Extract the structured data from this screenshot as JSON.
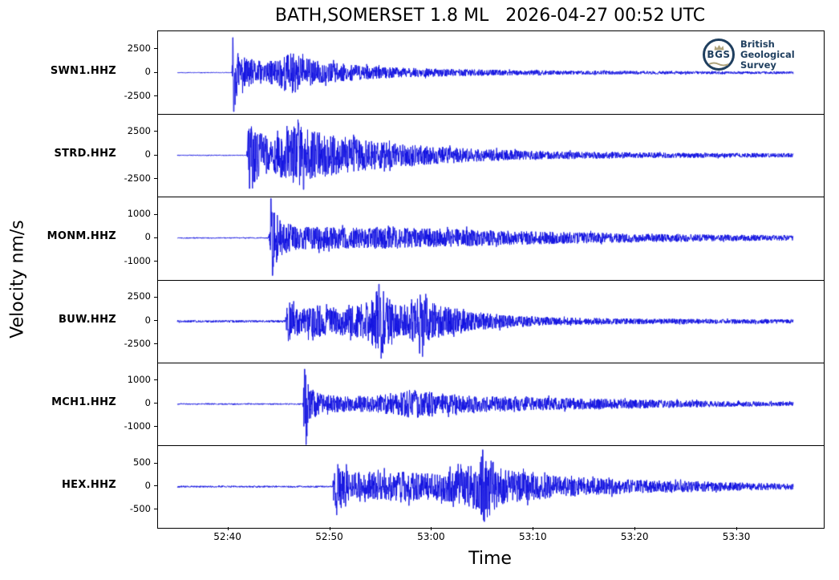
{
  "title": "BATH,SOMERSET 1.8 ML   2026-04-27 00:52 UTC",
  "xlabel": "Time",
  "ylabel": "Velocity nm/s",
  "colors": {
    "trace": "#0d0de0",
    "axis": "#000000",
    "background": "#ffffff",
    "logo_navy": "#1f3f5f",
    "logo_gold": "#b0a47c"
  },
  "logo": {
    "abbr": "BGS",
    "org_lines": [
      "British",
      "Geological",
      "Survey"
    ]
  },
  "chart_data": {
    "type": "line",
    "variant": "seismogram-multitrace",
    "title": "BATH,SOMERSET 1.8 ML   2026-04-27 00:52 UTC",
    "xlabel": "Time",
    "ylabel": "Velocity nm/s",
    "grid": false,
    "legend": "none",
    "x_axis": {
      "tick_labels": [
        "52:40",
        "52:50",
        "53:00",
        "53:10",
        "53:20",
        "53:30"
      ],
      "tick_seconds": [
        3160,
        3170,
        3180,
        3190,
        3200,
        3210
      ],
      "xlim_seconds": [
        3153.1,
        3218.5
      ],
      "data_seconds": [
        3155.0,
        3215.5
      ]
    },
    "traces": [
      {
        "station": "SWN1.HHZ",
        "ytick_labels": [
          "2500",
          "0",
          "-2500"
        ],
        "ytick_values": [
          2500,
          0,
          -2500
        ],
        "ylim": 4360,
        "onset_label": "52:40.4",
        "onset_seconds": 3160.4,
        "seed": 11,
        "envelope": [
          [
            3155,
            40
          ],
          [
            3160.35,
            40
          ],
          [
            3160.45,
            2200
          ],
          [
            3160.55,
            4100
          ],
          [
            3160.9,
            2300
          ],
          [
            3161.5,
            1650
          ],
          [
            3163.8,
            1050
          ],
          [
            3165,
            1700
          ],
          [
            3166.3,
            2250
          ],
          [
            3167.5,
            1550
          ],
          [
            3169.2,
            1150
          ],
          [
            3171.6,
            900
          ],
          [
            3174,
            700
          ],
          [
            3177,
            520
          ],
          [
            3182,
            380
          ],
          [
            3188,
            280
          ],
          [
            3194,
            210
          ],
          [
            3201,
            170
          ],
          [
            3208,
            150
          ],
          [
            3215.5,
            140
          ]
        ],
        "spikes": [
          [
            3160.45,
            3700
          ],
          [
            3160.55,
            -4100
          ]
        ]
      },
      {
        "station": "STRD.HHZ",
        "ytick_labels": [
          "2500",
          "0",
          "-2500"
        ],
        "ytick_values": [
          2500,
          0,
          -2500
        ],
        "ylim": 4360,
        "onset_label": "52:41.9",
        "onset_seconds": 3161.9,
        "seed": 22,
        "envelope": [
          [
            3155,
            50
          ],
          [
            3161.8,
            50
          ],
          [
            3161.95,
            2700
          ],
          [
            3162.3,
            3100
          ],
          [
            3163,
            2450
          ],
          [
            3164.3,
            1750
          ],
          [
            3165.7,
            2650
          ],
          [
            3166.6,
            3300
          ],
          [
            3167.4,
            3400
          ],
          [
            3168.2,
            2800
          ],
          [
            3169.2,
            2350
          ],
          [
            3170.8,
            2050
          ],
          [
            3172.5,
            1750
          ],
          [
            3174.3,
            1500
          ],
          [
            3176.4,
            1250
          ],
          [
            3178.7,
            1050
          ],
          [
            3181,
            900
          ],
          [
            3185,
            650
          ],
          [
            3190,
            470
          ],
          [
            3196,
            350
          ],
          [
            3203,
            280
          ],
          [
            3210,
            240
          ],
          [
            3215.5,
            225
          ]
        ],
        "spikes": [
          [
            3162.1,
            -3500
          ],
          [
            3166.9,
            3400
          ],
          [
            3167.4,
            -3600
          ]
        ]
      },
      {
        "station": "MONM.HHZ",
        "ytick_labels": [
          "1000",
          "0",
          "-1000"
        ],
        "ytick_values": [
          1000,
          0,
          -1000
        ],
        "ylim": 1760,
        "onset_label": "52:44.1",
        "onset_seconds": 3164.1,
        "seed": 33,
        "envelope": [
          [
            3155,
            25
          ],
          [
            3163.95,
            25
          ],
          [
            3164.1,
            900
          ],
          [
            3164.25,
            1650
          ],
          [
            3164.55,
            1250
          ],
          [
            3164.9,
            900
          ],
          [
            3165.6,
            650
          ],
          [
            3166.5,
            530
          ],
          [
            3168,
            490
          ],
          [
            3170,
            460
          ],
          [
            3173,
            440
          ],
          [
            3176,
            490
          ],
          [
            3178,
            430
          ],
          [
            3181,
            400
          ],
          [
            3185,
            340
          ],
          [
            3189,
            290
          ],
          [
            3193,
            250
          ],
          [
            3198,
            210
          ],
          [
            3203,
            175
          ],
          [
            3209,
            140
          ],
          [
            3215.5,
            115
          ]
        ],
        "spikes": [
          [
            3164.2,
            1680
          ],
          [
            3164.35,
            -1600
          ]
        ]
      },
      {
        "station": "BUW.HHZ",
        "ytick_labels": [
          "2500",
          "0",
          "-2500"
        ],
        "ytick_values": [
          2500,
          0,
          -2500
        ],
        "ylim": 4400,
        "onset_label": "52:45.7",
        "onset_seconds": 3165.7,
        "seed": 44,
        "envelope": [
          [
            3155,
            120
          ],
          [
            3165.55,
            120
          ],
          [
            3165.7,
            1700
          ],
          [
            3166,
            2400
          ],
          [
            3166.6,
            1550
          ],
          [
            3167.5,
            1350
          ],
          [
            3168.4,
            2100
          ],
          [
            3169.5,
            1450
          ],
          [
            3171,
            1550
          ],
          [
            3172.5,
            1650
          ],
          [
            3174,
            2300
          ],
          [
            3174.8,
            3950
          ],
          [
            3175.5,
            3000
          ],
          [
            3176.3,
            1950
          ],
          [
            3177.5,
            1750
          ],
          [
            3178.7,
            3200
          ],
          [
            3179.6,
            2250
          ],
          [
            3180.6,
            1750
          ],
          [
            3181.8,
            1500
          ],
          [
            3183.5,
            1150
          ],
          [
            3185.5,
            850
          ],
          [
            3188,
            640
          ],
          [
            3191,
            480
          ],
          [
            3195,
            370
          ],
          [
            3200,
            300
          ],
          [
            3206,
            260
          ],
          [
            3215.5,
            230
          ]
        ],
        "spikes": [
          [
            3174.8,
            3950
          ],
          [
            3175.1,
            -3300
          ],
          [
            3178.8,
            -3400
          ]
        ]
      },
      {
        "station": "MCH1.HHZ",
        "ytick_labels": [
          "1000",
          "0",
          "-1000"
        ],
        "ytick_values": [
          1000,
          0,
          -1000
        ],
        "ylim": 1780,
        "onset_label": "52:47.4",
        "onset_seconds": 3167.4,
        "seed": 55,
        "envelope": [
          [
            3155,
            30
          ],
          [
            3167.3,
            30
          ],
          [
            3167.45,
            1150
          ],
          [
            3167.6,
            1790
          ],
          [
            3167.95,
            950
          ],
          [
            3168.4,
            620
          ],
          [
            3169.3,
            430
          ],
          [
            3170.5,
            360
          ],
          [
            3172,
            330
          ],
          [
            3174,
            360
          ],
          [
            3176.5,
            480
          ],
          [
            3178,
            640
          ],
          [
            3179.8,
            530
          ],
          [
            3181.5,
            430
          ],
          [
            3184,
            370
          ],
          [
            3187,
            320
          ],
          [
            3191,
            280
          ],
          [
            3196,
            230
          ],
          [
            3202,
            180
          ],
          [
            3209,
            120
          ],
          [
            3215.5,
            90
          ]
        ],
        "spikes": [
          [
            3167.5,
            1500
          ],
          [
            3167.65,
            -1790
          ]
        ]
      },
      {
        "station": "HEX.HHZ",
        "ytick_labels": [
          "500",
          "0",
          "-500"
        ],
        "ytick_values": [
          500,
          0,
          -500
        ],
        "ylim": 900,
        "onset_label": "52:50.4",
        "onset_seconds": 3170.4,
        "seed": 66,
        "envelope": [
          [
            3155,
            18
          ],
          [
            3170.25,
            18
          ],
          [
            3170.4,
            480
          ],
          [
            3170.7,
            650
          ],
          [
            3171.2,
            420
          ],
          [
            3172,
            310
          ],
          [
            3173.5,
            340
          ],
          [
            3175,
            300
          ],
          [
            3177,
            330
          ],
          [
            3179,
            290
          ],
          [
            3181,
            310
          ],
          [
            3183,
            390
          ],
          [
            3184.3,
            520
          ],
          [
            3185,
            830
          ],
          [
            3185.7,
            620
          ],
          [
            3186.4,
            460
          ],
          [
            3187.5,
            360
          ],
          [
            3189,
            310
          ],
          [
            3191.5,
            260
          ],
          [
            3194,
            215
          ],
          [
            3197,
            175
          ],
          [
            3201,
            145
          ],
          [
            3206,
            115
          ],
          [
            3211,
            85
          ],
          [
            3215.5,
            65
          ]
        ],
        "spikes": [
          [
            3185.0,
            800
          ],
          [
            3185.15,
            -760
          ]
        ]
      }
    ]
  }
}
